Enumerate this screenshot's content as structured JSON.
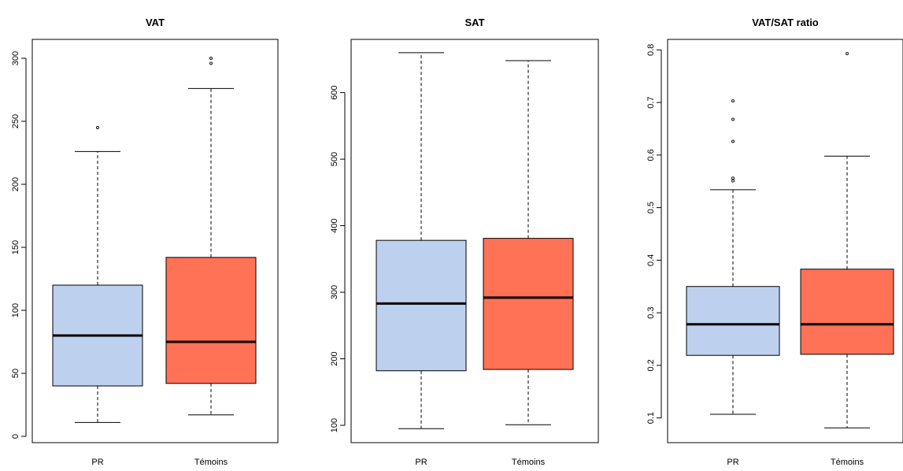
{
  "colors": {
    "pr": "#bdd0ee",
    "temoins": "#ff7256",
    "stroke": "#000000"
  },
  "chart_data": [
    {
      "type": "box",
      "title": "VAT",
      "categories": [
        "PR",
        "Témoins"
      ],
      "ylim": [
        -5,
        315
      ],
      "yticks": [
        0,
        50,
        100,
        150,
        200,
        250,
        300
      ],
      "boxes": [
        {
          "name": "PR",
          "whisker_low": 11,
          "q1": 40,
          "median": 80,
          "q3": 120,
          "whisker_high": 226,
          "outliers": [
            245
          ]
        },
        {
          "name": "Témoins",
          "whisker_low": 17,
          "q1": 42,
          "median": 75,
          "q3": 142,
          "whisker_high": 276,
          "outliers": [
            296,
            300
          ]
        }
      ]
    },
    {
      "type": "box",
      "title": "SAT",
      "categories": [
        "PR",
        "Témoins"
      ],
      "ylim": [
        74,
        680
      ],
      "yticks": [
        100,
        200,
        300,
        400,
        500,
        600
      ],
      "boxes": [
        {
          "name": "PR",
          "whisker_low": 95,
          "q1": 182,
          "median": 283,
          "q3": 378,
          "whisker_high": 660,
          "outliers": []
        },
        {
          "name": "Témoins",
          "whisker_low": 101,
          "q1": 184,
          "median": 292,
          "q3": 381,
          "whisker_high": 648,
          "outliers": []
        }
      ]
    },
    {
      "type": "box",
      "title": "VAT/SAT ratio",
      "categories": [
        "PR",
        "Témoins"
      ],
      "ylim": [
        0.053,
        0.82
      ],
      "yticks": [
        0.1,
        0.2,
        0.3,
        0.4,
        0.5,
        0.6,
        0.7,
        0.8
      ],
      "boxes": [
        {
          "name": "PR",
          "whisker_low": 0.107,
          "q1": 0.219,
          "median": 0.278,
          "q3": 0.35,
          "whisker_high": 0.534,
          "outliers": [
            0.551,
            0.556,
            0.626,
            0.668,
            0.703
          ]
        },
        {
          "name": "Témoins",
          "whisker_low": 0.081,
          "q1": 0.221,
          "median": 0.278,
          "q3": 0.383,
          "whisker_high": 0.598,
          "outliers": [
            0.793
          ]
        }
      ]
    }
  ]
}
